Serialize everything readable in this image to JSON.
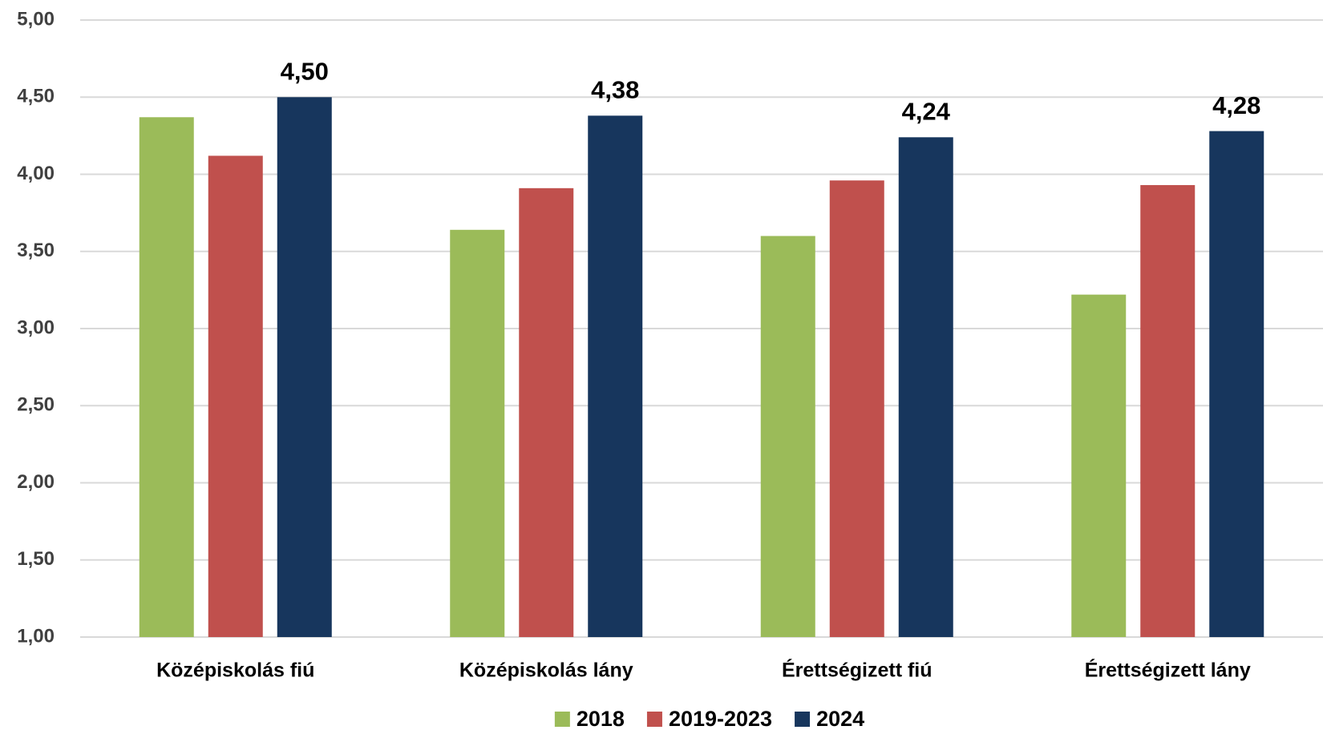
{
  "chart_data": {
    "type": "bar",
    "categories": [
      "Középiskolás fiú",
      "Középiskolás lány",
      "Érettségizett fiú",
      "Érettségizett lány"
    ],
    "series": [
      {
        "name": "2018",
        "color": "#9bbb59",
        "values": [
          4.37,
          3.64,
          3.6,
          3.22
        ]
      },
      {
        "name": "2019-2023",
        "color": "#c0504d",
        "values": [
          4.12,
          3.91,
          3.96,
          3.93
        ]
      },
      {
        "name": "2024",
        "color": "#17365d",
        "values": [
          4.5,
          4.38,
          4.24,
          4.28
        ],
        "value_labels": [
          "4,50",
          "4,38",
          "4,24",
          "4,28"
        ]
      }
    ],
    "ylim": [
      1,
      5
    ],
    "yticks": [
      {
        "value": 1,
        "label": "1,00"
      },
      {
        "value": 1.5,
        "label": "1,50"
      },
      {
        "value": 2,
        "label": "2,00"
      },
      {
        "value": 2.5,
        "label": "2,50"
      },
      {
        "value": 3,
        "label": "3,00"
      },
      {
        "value": 3.5,
        "label": "3,50"
      },
      {
        "value": 4,
        "label": "4,00"
      },
      {
        "value": 4.5,
        "label": "4,50"
      },
      {
        "value": 5,
        "label": "5,00"
      }
    ],
    "grid": true,
    "legend": "bottom"
  }
}
